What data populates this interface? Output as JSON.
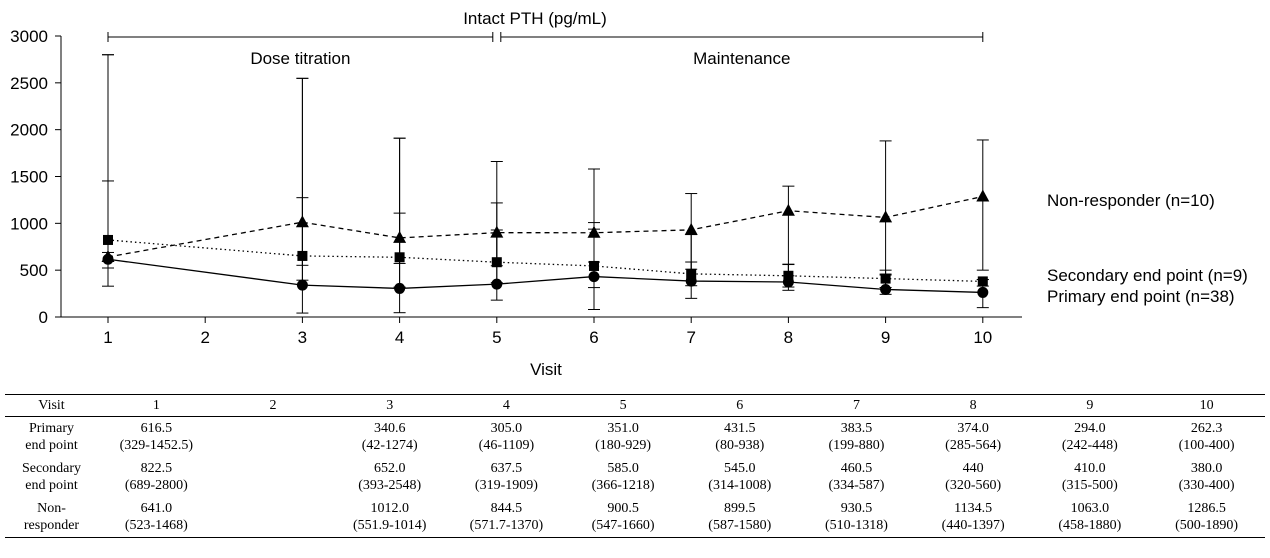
{
  "chart_data": {
    "type": "line",
    "title": "Intact PTH (pg/mL)",
    "xlabel": "Visit",
    "ylabel": "",
    "x": [
      1,
      2,
      3,
      4,
      5,
      6,
      7,
      8,
      9,
      10
    ],
    "xlim": [
      1,
      10
    ],
    "ylim": [
      0,
      3000
    ],
    "yticks": [
      0,
      500,
      1000,
      1500,
      2000,
      2500,
      3000
    ],
    "grid": false,
    "phases": [
      {
        "label": "Dose titration",
        "from": 1,
        "to": 5
      },
      {
        "label": "Maintenance",
        "from": 5,
        "to": 10
      }
    ],
    "series": [
      {
        "name": "Non-responder (n=10)",
        "marker": "triangle",
        "line": "dashed",
        "x": [
          1,
          3,
          4,
          5,
          6,
          7,
          8,
          9,
          10
        ],
        "values": [
          641.0,
          1012.0,
          844.5,
          900.5,
          899.5,
          930.5,
          1134.5,
          1063.0,
          1286.5
        ],
        "low": [
          523,
          551.9,
          571.7,
          547,
          587,
          510,
          440,
          458,
          500
        ],
        "high": [
          1468,
          1014,
          1370,
          1660,
          1580,
          1318,
          1397,
          1880,
          1890
        ],
        "whisker_low": [
          523,
          551.9,
          571.7,
          547,
          587,
          510,
          440,
          458,
          500
        ],
        "whisker_high": [
          2800,
          2548,
          1909,
          1660,
          1580,
          1318,
          1397,
          1880,
          1890
        ]
      },
      {
        "name": "Secondary end point (n=9)",
        "marker": "square",
        "line": "dotted",
        "x": [
          1,
          3,
          4,
          5,
          6,
          7,
          8,
          9,
          10
        ],
        "values": [
          822.5,
          652.0,
          637.5,
          585.0,
          545.0,
          460.5,
          440,
          410.0,
          380.0
        ],
        "low": [
          689,
          393,
          319,
          366,
          314,
          334,
          320,
          315,
          330
        ],
        "high": [
          2800,
          2548,
          1909,
          1218,
          1008,
          587,
          560,
          500,
          400
        ]
      },
      {
        "name": "Primary end point (n=38)",
        "marker": "circle",
        "line": "solid",
        "x": [
          1,
          3,
          4,
          5,
          6,
          7,
          8,
          9,
          10
        ],
        "values": [
          616.5,
          340.6,
          305.0,
          351.0,
          431.5,
          383.5,
          374.0,
          294.0,
          262.3
        ],
        "low": [
          329,
          42,
          46,
          180,
          80,
          199,
          285,
          242,
          100
        ],
        "high": [
          1452.5,
          1274,
          1109,
          929,
          938,
          880,
          564,
          448,
          400
        ]
      }
    ]
  },
  "table": {
    "header_label": "Visit",
    "visits": [
      "1",
      "2",
      "3",
      "4",
      "5",
      "6",
      "7",
      "8",
      "9",
      "10"
    ],
    "rows": [
      {
        "label_lines": [
          "Primary",
          "end point"
        ],
        "cells": [
          [
            "616.5",
            "(329-1452.5)"
          ],
          [
            "",
            ""
          ],
          [
            "340.6",
            "(42-1274)"
          ],
          [
            "305.0",
            "(46-1109)"
          ],
          [
            "351.0",
            "(180-929)"
          ],
          [
            "431.5",
            "(80-938)"
          ],
          [
            "383.5",
            "(199-880)"
          ],
          [
            "374.0",
            "(285-564)"
          ],
          [
            "294.0",
            "(242-448)"
          ],
          [
            "262.3",
            "(100-400)"
          ]
        ]
      },
      {
        "label_lines": [
          "Secondary",
          "end point"
        ],
        "cells": [
          [
            "822.5",
            "(689-2800)"
          ],
          [
            "",
            ""
          ],
          [
            "652.0",
            "(393-2548)"
          ],
          [
            "637.5",
            "(319-1909)"
          ],
          [
            "585.0",
            "(366-1218)"
          ],
          [
            "545.0",
            "(314-1008)"
          ],
          [
            "460.5",
            "(334-587)"
          ],
          [
            "440",
            "(320-560)"
          ],
          [
            "410.0",
            "(315-500)"
          ],
          [
            "380.0",
            "(330-400)"
          ]
        ]
      },
      {
        "label_lines": [
          "Non-",
          "responder"
        ],
        "cells": [
          [
            "641.0",
            "(523-1468)"
          ],
          [
            "",
            ""
          ],
          [
            "1012.0",
            "(551.9-1014)"
          ],
          [
            "844.5",
            "(571.7-1370)"
          ],
          [
            "900.5",
            "(547-1660)"
          ],
          [
            "899.5",
            "(587-1580)"
          ],
          [
            "930.5",
            "(510-1318)"
          ],
          [
            "1134.5",
            "(440-1397)"
          ],
          [
            "1063.0",
            "(458-1880)"
          ],
          [
            "1286.5",
            "(500-1890)"
          ]
        ]
      }
    ]
  }
}
